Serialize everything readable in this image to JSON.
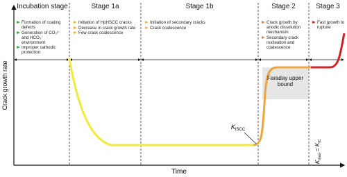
{
  "axes": {
    "y_label": "Crack growth rate",
    "x_label": "Time"
  },
  "stages": [
    {
      "title": "Incubation stage",
      "bullets": [
        "Formation of coating defects",
        "Generation of CO₃²⁻ and HCO₃⁻ environment",
        "Improper cathodic protection"
      ]
    },
    {
      "title": "Stage 1a",
      "bullets": [
        "Initiation of HpHSCC cracks",
        "Decrease in crack growth rate",
        "Few crack coalescence"
      ]
    },
    {
      "title": "Stage 1b",
      "bullets": [
        "Initiation of secondary cracks",
        "Crack coalescence"
      ]
    },
    {
      "title": "Stage 2",
      "bullets": [
        "Crack growth by anodic dissolution mechanism",
        "Secondary crack nucleation and coalescence"
      ]
    },
    {
      "title": "Stage 3",
      "bullets": [
        "Fast growth to rupture"
      ]
    }
  ],
  "annotations": {
    "faraday": "Faraday upper bound",
    "kiscc": {
      "symbol": "K",
      "subscript": "ISCC"
    },
    "kmax": {
      "left_symbol": "K",
      "left_subscript": "max",
      "relation": " = ",
      "right_symbol": "K",
      "right_subscript": "IC"
    }
  }
}
